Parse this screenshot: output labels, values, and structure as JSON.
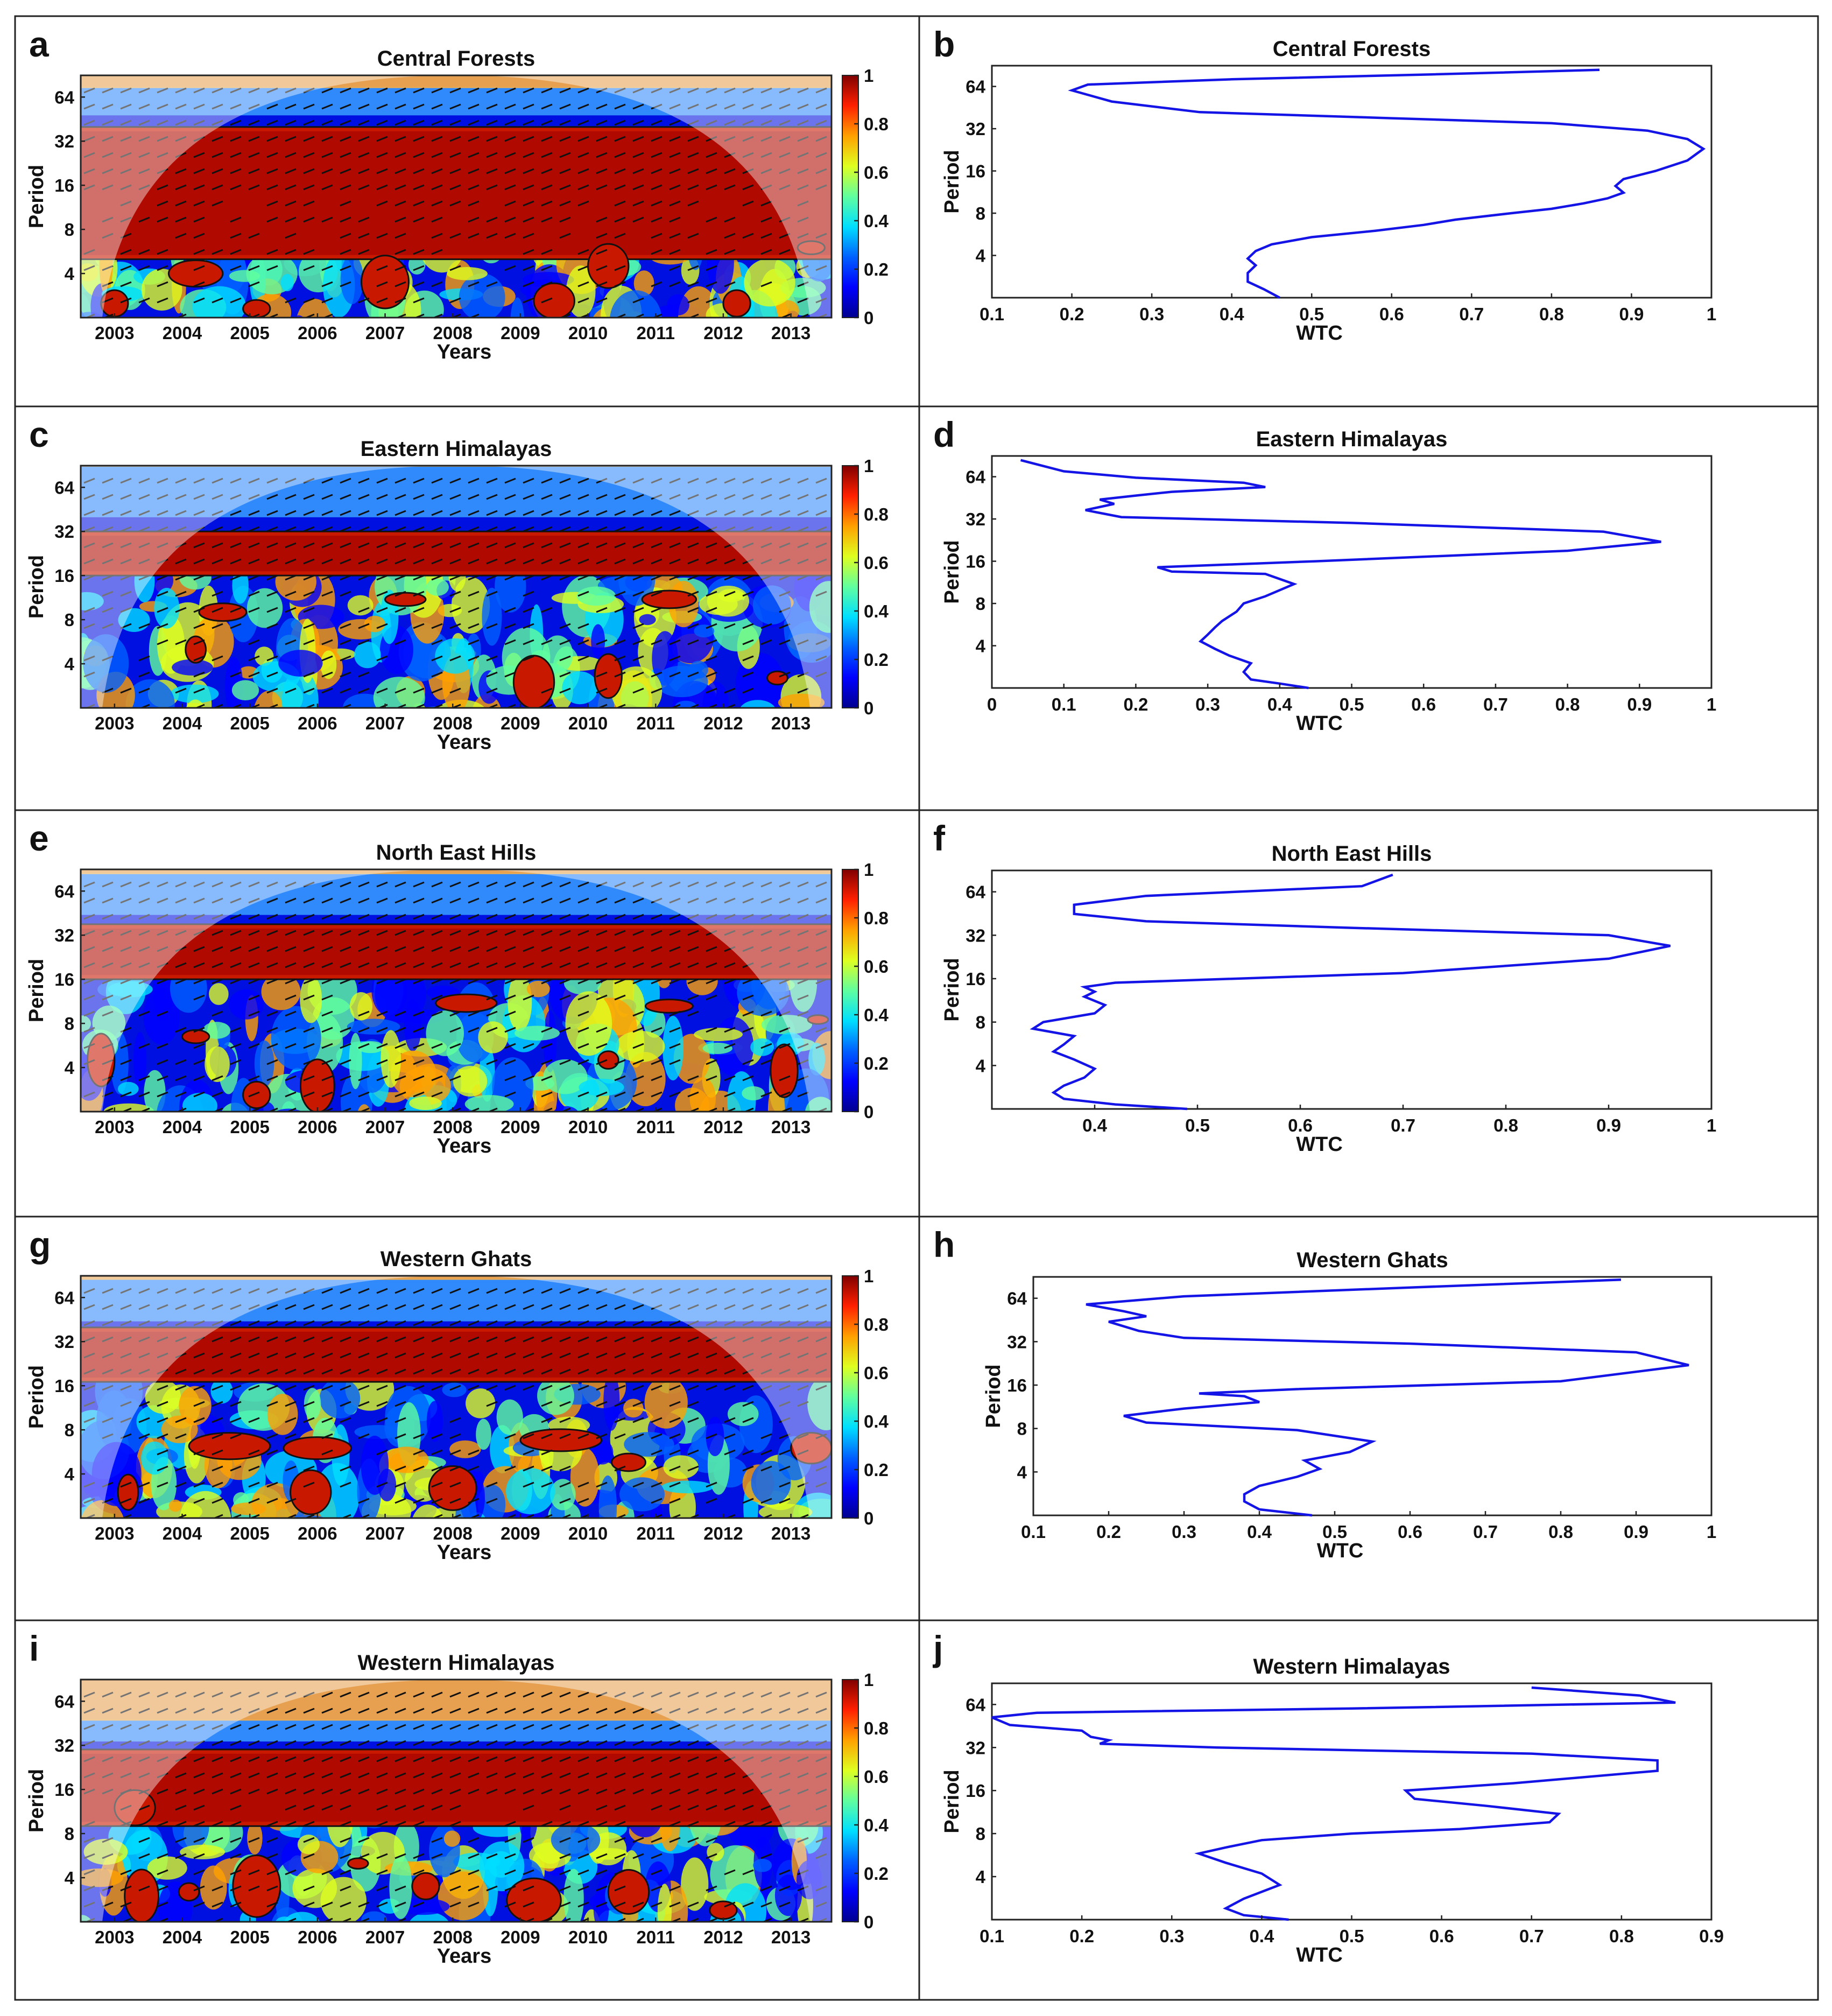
{
  "figure": {
    "colors": {
      "line": "#1414e6",
      "colormap": [
        "#00008f",
        "#0000ff",
        "#0080ff",
        "#00ffff",
        "#80ff80",
        "#ffff00",
        "#ff8000",
        "#ff0000",
        "#800000"
      ],
      "shadow": "#ffffff"
    }
  },
  "chart_data": [
    {
      "id": "a",
      "letter": "a",
      "type": "heatmap",
      "title": "Central Forests",
      "xlabel": "Years",
      "ylabel": "Period",
      "xticks": [
        "2003",
        "2004",
        "2005",
        "2006",
        "2007",
        "2008",
        "2009",
        "2010",
        "2011",
        "2012",
        "2013"
      ],
      "yticks": [
        "4",
        "8",
        "16",
        "32",
        "64"
      ],
      "xlim": [
        2002.5,
        2013.6
      ],
      "ylim_period": [
        2,
        90
      ],
      "colorbar": {
        "ticks": [
          "0",
          "0.2",
          "0.4",
          "0.6",
          "0.8",
          "1"
        ],
        "range": [
          0,
          1
        ]
      },
      "high_coherence_band_period": [
        5,
        40
      ],
      "low_coherence_band_period": [
        48,
        75
      ],
      "significant_patches": [
        {
          "year": 2003.0,
          "period": 2.5,
          "rx": 0.2,
          "ry": 0.3
        },
        {
          "year": 2004.2,
          "period": 4,
          "rx": 0.4,
          "ry": 0.3
        },
        {
          "year": 2005.1,
          "period": 2.3,
          "rx": 0.2,
          "ry": 0.2
        },
        {
          "year": 2007.0,
          "period": 3.5,
          "rx": 0.35,
          "ry": 0.6
        },
        {
          "year": 2009.5,
          "period": 2.6,
          "rx": 0.3,
          "ry": 0.4
        },
        {
          "year": 2010.3,
          "period": 4.5,
          "rx": 0.3,
          "ry": 0.5
        },
        {
          "year": 2012.2,
          "period": 2.5,
          "rx": 0.2,
          "ry": 0.3
        },
        {
          "year": 2013.3,
          "period": 6,
          "rx": 0.2,
          "ry": 0.15
        }
      ]
    },
    {
      "id": "b",
      "letter": "b",
      "type": "line",
      "title": "Central Forests",
      "xlabel": "WTC",
      "ylabel": "Period",
      "xlim": [
        0.1,
        1.0
      ],
      "xticks": [
        0.1,
        0.2,
        0.3,
        0.4,
        0.5,
        0.6,
        0.7,
        0.8,
        0.9,
        1
      ],
      "xticklabels": [
        "0.1",
        "0.2",
        "0.3",
        "0.4",
        "0.5",
        "0.6",
        "0.7",
        "0.8",
        "0.9",
        "1"
      ],
      "yticks": [
        "4",
        "8",
        "16",
        "32",
        "64"
      ],
      "ylim_period": [
        2,
        90
      ],
      "series": [
        {
          "name": "WTC",
          "wtc": [
            0.46,
            0.44,
            0.42,
            0.42,
            0.43,
            0.42,
            0.43,
            0.45,
            0.5,
            0.58,
            0.64,
            0.68,
            0.75,
            0.8,
            0.84,
            0.87,
            0.89,
            0.88,
            0.89,
            0.93,
            0.97,
            0.99,
            0.97,
            0.92,
            0.8,
            0.6,
            0.36,
            0.25,
            0.2,
            0.22,
            0.4,
            0.65,
            0.86
          ],
          "period": [
            2.0,
            2.3,
            2.6,
            3.0,
            3.4,
            3.8,
            4.3,
            4.8,
            5.4,
            6.0,
            6.6,
            7.2,
            8.0,
            8.6,
            9.4,
            10.2,
            11.2,
            12.5,
            14.0,
            16.0,
            19.0,
            23.0,
            27.0,
            31.0,
            35.0,
            38.0,
            42.0,
            50.0,
            60.0,
            66.0,
            72.0,
            78.0,
            84.0
          ]
        }
      ]
    },
    {
      "id": "c",
      "letter": "c",
      "type": "heatmap",
      "title": "Eastern Himalayas",
      "xlabel": "Years",
      "ylabel": "Period",
      "xticks": [
        "2003",
        "2004",
        "2005",
        "2006",
        "2007",
        "2008",
        "2009",
        "2010",
        "2011",
        "2012",
        "2013"
      ],
      "yticks": [
        "4",
        "8",
        "16",
        "32",
        "64"
      ],
      "xlim": [
        2002.5,
        2013.6
      ],
      "ylim_period": [
        2,
        90
      ],
      "colorbar": {
        "ticks": [
          "0",
          "0.2",
          "0.4",
          "0.6",
          "0.8",
          "1"
        ],
        "range": [
          0,
          1
        ]
      },
      "high_coherence_band_period": [
        16,
        32
      ],
      "low_coherence_band_period": [
        40,
        90
      ],
      "significant_patches": [
        {
          "year": 2004.6,
          "period": 9,
          "rx": 0.35,
          "ry": 0.2
        },
        {
          "year": 2004.2,
          "period": 5,
          "rx": 0.15,
          "ry": 0.3
        },
        {
          "year": 2007.3,
          "period": 11,
          "rx": 0.3,
          "ry": 0.15
        },
        {
          "year": 2009.2,
          "period": 3,
          "rx": 0.3,
          "ry": 0.6
        },
        {
          "year": 2010.3,
          "period": 3.3,
          "rx": 0.2,
          "ry": 0.5
        },
        {
          "year": 2011.2,
          "period": 11,
          "rx": 0.4,
          "ry": 0.2
        },
        {
          "year": 2012.8,
          "period": 3.2,
          "rx": 0.15,
          "ry": 0.15
        }
      ]
    },
    {
      "id": "d",
      "letter": "d",
      "type": "line",
      "title": "Eastern Himalayas",
      "xlabel": "WTC",
      "ylabel": "Period",
      "xlim": [
        0,
        1.0
      ],
      "xticks": [
        0,
        0.1,
        0.2,
        0.3,
        0.4,
        0.5,
        0.6,
        0.7,
        0.8,
        0.9,
        1
      ],
      "xticklabels": [
        "0",
        "0.1",
        "0.2",
        "0.3",
        "0.4",
        "0.5",
        "0.6",
        "0.7",
        "0.8",
        "0.9",
        "1"
      ],
      "yticks": [
        "4",
        "8",
        "16",
        "32",
        "64"
      ],
      "ylim_period": [
        2,
        90
      ],
      "series": [
        {
          "name": "WTC",
          "wtc": [
            0.44,
            0.4,
            0.36,
            0.35,
            0.36,
            0.33,
            0.31,
            0.29,
            0.3,
            0.31,
            0.32,
            0.34,
            0.35,
            0.38,
            0.42,
            0.38,
            0.25,
            0.23,
            0.45,
            0.8,
            0.93,
            0.85,
            0.5,
            0.18,
            0.13,
            0.17,
            0.15,
            0.2,
            0.25,
            0.38,
            0.35,
            0.2,
            0.1,
            0.04
          ],
          "period": [
            2.0,
            2.15,
            2.3,
            2.6,
            3.0,
            3.4,
            3.8,
            4.3,
            4.8,
            5.4,
            6.0,
            7.0,
            8.0,
            9.0,
            11.0,
            13.0,
            13.5,
            14.5,
            16.0,
            19.0,
            22.0,
            26.0,
            30.0,
            33.0,
            37.0,
            41.0,
            44.0,
            47.0,
            50.0,
            54.0,
            58.0,
            63.0,
            70.0,
            84.0
          ]
        }
      ]
    },
    {
      "id": "e",
      "letter": "e",
      "type": "heatmap",
      "title": "North East Hills",
      "xlabel": "Years",
      "ylabel": "Period",
      "xticks": [
        "2003",
        "2004",
        "2005",
        "2006",
        "2007",
        "2008",
        "2009",
        "2010",
        "2011",
        "2012",
        "2013"
      ],
      "yticks": [
        "4",
        "8",
        "16",
        "32",
        "64"
      ],
      "xlim": [
        2002.5,
        2013.6
      ],
      "ylim_period": [
        2,
        90
      ],
      "colorbar": {
        "ticks": [
          "0",
          "0.2",
          "0.4",
          "0.6",
          "0.8",
          "1"
        ],
        "range": [
          0,
          1
        ]
      },
      "high_coherence_band_period": [
        16,
        38
      ],
      "low_coherence_band_period": [
        44,
        85
      ],
      "significant_patches": [
        {
          "year": 2002.8,
          "period": 4.5,
          "rx": 0.2,
          "ry": 0.6
        },
        {
          "year": 2004.2,
          "period": 6.5,
          "rx": 0.2,
          "ry": 0.15
        },
        {
          "year": 2005.1,
          "period": 2.6,
          "rx": 0.2,
          "ry": 0.3
        },
        {
          "year": 2006.0,
          "period": 3.0,
          "rx": 0.25,
          "ry": 0.6
        },
        {
          "year": 2008.2,
          "period": 11,
          "rx": 0.45,
          "ry": 0.2
        },
        {
          "year": 2010.3,
          "period": 4.5,
          "rx": 0.15,
          "ry": 0.2
        },
        {
          "year": 2011.2,
          "period": 10.5,
          "rx": 0.35,
          "ry": 0.15
        },
        {
          "year": 2012.9,
          "period": 3.8,
          "rx": 0.2,
          "ry": 0.6
        },
        {
          "year": 2013.4,
          "period": 8.5,
          "rx": 0.15,
          "ry": 0.1
        }
      ]
    },
    {
      "id": "f",
      "letter": "f",
      "type": "line",
      "title": "North East Hills",
      "xlabel": "WTC",
      "ylabel": "Period",
      "xlim": [
        0.3,
        1.0
      ],
      "xticks": [
        0.4,
        0.5,
        0.6,
        0.7,
        0.8,
        0.9,
        1
      ],
      "xticklabels": [
        "0.4",
        "0.5",
        "0.6",
        "0.7",
        "0.8",
        "0.9",
        "1"
      ],
      "yticks": [
        "4",
        "8",
        "16",
        "32",
        "64"
      ],
      "ylim_period": [
        2,
        90
      ],
      "series": [
        {
          "name": "WTC",
          "wtc": [
            0.49,
            0.42,
            0.37,
            0.36,
            0.37,
            0.39,
            0.4,
            0.38,
            0.36,
            0.37,
            0.38,
            0.34,
            0.35,
            0.4,
            0.41,
            0.39,
            0.4,
            0.39,
            0.42,
            0.7,
            0.9,
            0.96,
            0.9,
            0.65,
            0.45,
            0.38,
            0.38,
            0.45,
            0.66,
            0.69
          ],
          "period": [
            2.0,
            2.15,
            2.35,
            2.6,
            2.9,
            3.3,
            3.8,
            4.4,
            5.0,
            5.6,
            6.4,
            7.2,
            8.0,
            9.2,
            10.5,
            12.0,
            13.0,
            14.0,
            15.0,
            17.5,
            22.0,
            27.0,
            32.0,
            36.0,
            40.0,
            45.0,
            52.0,
            60.0,
            70.0,
            84.0
          ]
        }
      ]
    },
    {
      "id": "g",
      "letter": "g",
      "type": "heatmap",
      "title": "Western Ghats",
      "xlabel": "Years",
      "ylabel": "Period",
      "xticks": [
        "2003",
        "2004",
        "2005",
        "2006",
        "2007",
        "2008",
        "2009",
        "2010",
        "2011",
        "2012",
        "2013"
      ],
      "yticks": [
        "4",
        "8",
        "16",
        "32",
        "64"
      ],
      "xlim": [
        2002.5,
        2013.6
      ],
      "ylim_period": [
        2,
        90
      ],
      "colorbar": {
        "ticks": [
          "0",
          "0.2",
          "0.4",
          "0.6",
          "0.8",
          "1"
        ],
        "range": [
          0,
          1
        ]
      },
      "high_coherence_band_period": [
        17,
        40
      ],
      "low_coherence_band_period": [
        44,
        86
      ],
      "significant_patches": [
        {
          "year": 2004.7,
          "period": 6.2,
          "rx": 0.6,
          "ry": 0.3
        },
        {
          "year": 2006.0,
          "period": 6.0,
          "rx": 0.5,
          "ry": 0.25
        },
        {
          "year": 2005.9,
          "period": 3.0,
          "rx": 0.3,
          "ry": 0.5
        },
        {
          "year": 2008.0,
          "period": 3.2,
          "rx": 0.35,
          "ry": 0.5
        },
        {
          "year": 2009.6,
          "period": 6.8,
          "rx": 0.6,
          "ry": 0.25
        },
        {
          "year": 2010.6,
          "period": 4.8,
          "rx": 0.25,
          "ry": 0.2
        },
        {
          "year": 2013.3,
          "period": 6.0,
          "rx": 0.3,
          "ry": 0.35
        },
        {
          "year": 2003.2,
          "period": 3.0,
          "rx": 0.15,
          "ry": 0.4
        }
      ]
    },
    {
      "id": "h",
      "letter": "h",
      "type": "line",
      "title": "Western Ghats",
      "xlabel": "WTC",
      "ylabel": "Period",
      "xlim": [
        0.1,
        1.0
      ],
      "xticks": [
        0.1,
        0.2,
        0.3,
        0.4,
        0.5,
        0.6,
        0.7,
        0.8,
        0.9,
        1
      ],
      "xticklabels": [
        "0.1",
        "0.2",
        "0.3",
        "0.4",
        "0.5",
        "0.6",
        "0.7",
        "0.8",
        "0.9",
        "1"
      ],
      "yticks": [
        "4",
        "8",
        "16",
        "32",
        "64"
      ],
      "ylim_period": [
        2,
        90
      ],
      "series": [
        {
          "name": "WTC",
          "wtc": [
            0.47,
            0.4,
            0.38,
            0.38,
            0.4,
            0.45,
            0.48,
            0.46,
            0.52,
            0.55,
            0.45,
            0.25,
            0.22,
            0.3,
            0.4,
            0.38,
            0.32,
            0.45,
            0.8,
            0.97,
            0.9,
            0.6,
            0.3,
            0.24,
            0.2,
            0.25,
            0.22,
            0.17,
            0.3,
            0.6,
            0.88
          ],
          "period": [
            2.0,
            2.2,
            2.5,
            2.8,
            3.2,
            3.7,
            4.2,
            4.8,
            5.5,
            6.5,
            7.8,
            8.8,
            9.8,
            11.0,
            12.2,
            13.4,
            14.0,
            15.0,
            17.0,
            22.0,
            27.0,
            31.0,
            34.0,
            38.0,
            44.0,
            48.0,
            52.0,
            58.0,
            66.0,
            76.0,
            86.0
          ]
        }
      ]
    },
    {
      "id": "i",
      "letter": "i",
      "type": "heatmap",
      "title": "Western Himalayas",
      "xlabel": "Years",
      "ylabel": "Period",
      "xticks": [
        "2003",
        "2004",
        "2005",
        "2006",
        "2007",
        "2008",
        "2009",
        "2010",
        "2011",
        "2012",
        "2013"
      ],
      "yticks": [
        "4",
        "8",
        "16",
        "32",
        "64"
      ],
      "xlim": [
        2002.5,
        2013.6
      ],
      "ylim_period": [
        2,
        90
      ],
      "colorbar": {
        "ticks": [
          "0",
          "0.2",
          "0.4",
          "0.6",
          "0.8",
          "1"
        ],
        "range": [
          0,
          1
        ]
      },
      "high_coherence_band_period": [
        9,
        30
      ],
      "low_coherence_band_period": [
        34,
        48
      ],
      "significant_patches": [
        {
          "year": 2003.3,
          "period": 12,
          "rx": 0.3,
          "ry": 0.4
        },
        {
          "year": 2003.4,
          "period": 3.0,
          "rx": 0.25,
          "ry": 0.6
        },
        {
          "year": 2004.1,
          "period": 3.2,
          "rx": 0.15,
          "ry": 0.2
        },
        {
          "year": 2005.1,
          "period": 3.5,
          "rx": 0.35,
          "ry": 0.7
        },
        {
          "year": 2006.6,
          "period": 5.0,
          "rx": 0.15,
          "ry": 0.12
        },
        {
          "year": 2007.6,
          "period": 3.5,
          "rx": 0.2,
          "ry": 0.3
        },
        {
          "year": 2009.2,
          "period": 2.8,
          "rx": 0.4,
          "ry": 0.5
        },
        {
          "year": 2010.6,
          "period": 3.2,
          "rx": 0.3,
          "ry": 0.5
        },
        {
          "year": 2012.0,
          "period": 2.4,
          "rx": 0.2,
          "ry": 0.2
        }
      ]
    },
    {
      "id": "j",
      "letter": "j",
      "type": "line",
      "title": "Western Himalayas",
      "xlabel": "WTC",
      "ylabel": "Period",
      "xlim": [
        0.1,
        0.9
      ],
      "xticks": [
        0.1,
        0.2,
        0.3,
        0.4,
        0.5,
        0.6,
        0.7,
        0.8,
        0.9
      ],
      "xticklabels": [
        "0.1",
        "0.2",
        "0.3",
        "0.4",
        "0.5",
        "0.6",
        "0.7",
        "0.8",
        "0.9"
      ],
      "yticks": [
        "4",
        "8",
        "16",
        "32",
        "64"
      ],
      "ylim_period": [
        2,
        90
      ],
      "series": [
        {
          "name": "WTC",
          "wtc": [
            0.43,
            0.38,
            0.36,
            0.38,
            0.42,
            0.4,
            0.36,
            0.33,
            0.36,
            0.4,
            0.5,
            0.62,
            0.72,
            0.73,
            0.65,
            0.57,
            0.56,
            0.68,
            0.84,
            0.84,
            0.7,
            0.35,
            0.22,
            0.23,
            0.21,
            0.2,
            0.12,
            0.1,
            0.15,
            0.5,
            0.86,
            0.82,
            0.7
          ],
          "period": [
            2.0,
            2.15,
            2.4,
            2.8,
            3.5,
            4.2,
            5.0,
            5.8,
            6.4,
            7.2,
            8.0,
            8.6,
            9.6,
            11.0,
            12.5,
            14.0,
            16.0,
            18.0,
            22.0,
            26.0,
            29.0,
            32.0,
            34.0,
            36.0,
            38.0,
            42.0,
            46.0,
            52.0,
            56.0,
            60.0,
            66.0,
            74.0,
            84.0
          ]
        }
      ]
    }
  ]
}
